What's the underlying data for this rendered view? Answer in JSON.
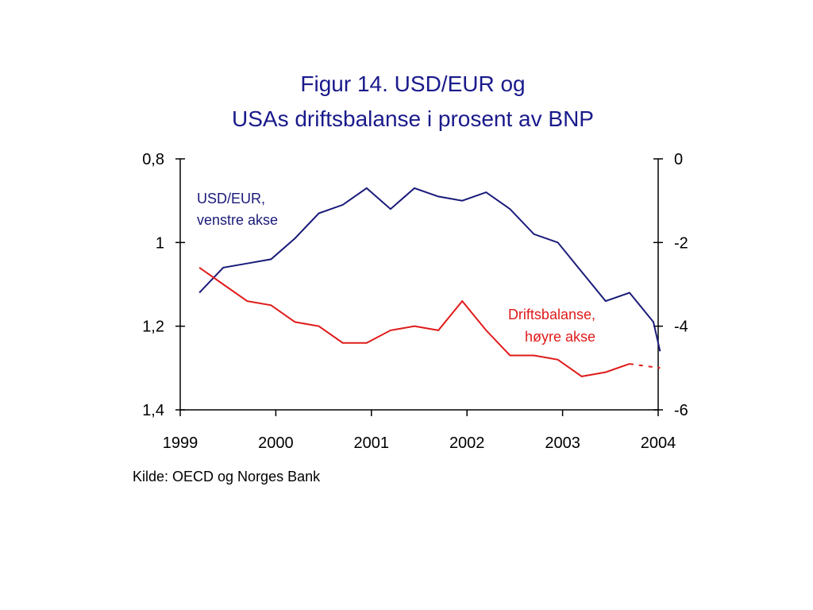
{
  "chart_data": {
    "type": "line",
    "title_lines": [
      "Figur 14. USD/EUR og",
      "USAs driftsbalanse i prosent av BNP"
    ],
    "source": "Kilde: OECD og Norges Bank",
    "colors": {
      "title": "#1a1a8c",
      "usd_eur": "#1a1a7a",
      "driftsbalanse": "#e01a1a",
      "axis": "#000000"
    },
    "x_axis": {
      "range": [
        1999,
        2004
      ],
      "tick_labels": [
        "1999",
        "2000",
        "2001",
        "2002",
        "2003",
        "2004"
      ]
    },
    "y_left": {
      "range": [
        0.8,
        1.4
      ],
      "inverted": true,
      "tick_labels": [
        "0,8",
        "1",
        "1,2",
        "1,4"
      ],
      "tick_values": [
        0.8,
        1.0,
        1.2,
        1.4
      ]
    },
    "y_right": {
      "range": [
        -6,
        0
      ],
      "tick_labels": [
        "0",
        "-2",
        "-4",
        "-6"
      ],
      "tick_values": [
        0,
        -2,
        -4,
        -6
      ]
    },
    "grid": false,
    "series": [
      {
        "name_lines": [
          "USD/EUR,",
          "venstre akse"
        ],
        "axis": "left",
        "x": [
          1999.2,
          1999.45,
          1999.7,
          1999.95,
          2000.2,
          2000.45,
          2000.7,
          2000.95,
          2001.2,
          2001.45,
          2001.7,
          2001.95,
          2002.2,
          2002.45,
          2002.7,
          2002.95,
          2003.2,
          2003.45,
          2003.7,
          2003.95,
          2004.02
        ],
        "values": [
          1.12,
          1.06,
          1.05,
          1.04,
          0.99,
          0.93,
          0.91,
          0.87,
          0.92,
          0.87,
          0.89,
          0.9,
          0.88,
          0.92,
          0.98,
          1.0,
          1.07,
          1.14,
          1.12,
          1.19,
          1.26
        ]
      },
      {
        "name_lines": [
          "Driftsbalanse,",
          "høyre akse"
        ],
        "axis": "right",
        "x": [
          1999.2,
          1999.45,
          1999.7,
          1999.95,
          2000.2,
          2000.45,
          2000.7,
          2000.95,
          2001.2,
          2001.45,
          2001.7,
          2001.95,
          2002.2,
          2002.45,
          2002.7,
          2002.95,
          2003.2,
          2003.45,
          2003.7
        ],
        "values": [
          -2.6,
          -3.0,
          -3.4,
          -3.5,
          -3.9,
          -4.0,
          -4.4,
          -4.4,
          -4.1,
          -4.0,
          -4.1,
          -3.4,
          -4.1,
          -4.7,
          -4.7,
          -4.8,
          -5.2,
          -5.1,
          -4.9
        ],
        "projection": {
          "x": [
            2003.7,
            2004.02
          ],
          "values": [
            -4.9,
            -5.0
          ]
        }
      }
    ]
  }
}
